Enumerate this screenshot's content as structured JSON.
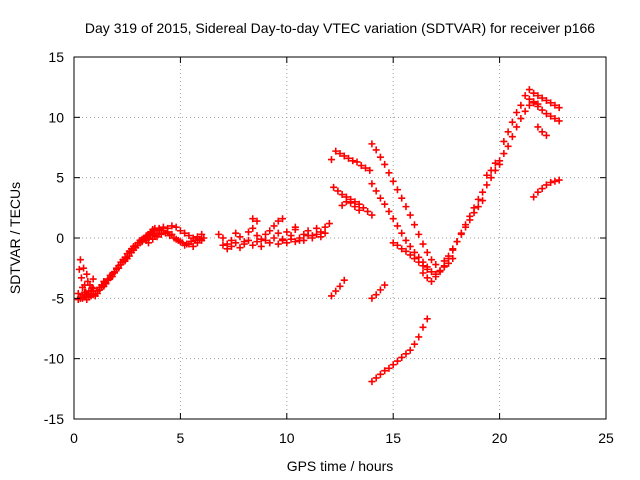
{
  "chart_data": {
    "type": "scatter",
    "title": "Day 319 of 2015, Sidereal Day-to-day VTEC variation (SDTVAR) for receiver p166",
    "xlabel": "GPS time / hours",
    "ylabel": "SDTVAR / TECUs",
    "xlim": [
      0,
      25
    ],
    "ylim": [
      -15,
      15
    ],
    "xticks": [
      0,
      5,
      10,
      15,
      20,
      25
    ],
    "yticks": [
      -15,
      -10,
      -5,
      0,
      5,
      10,
      15
    ],
    "grid": true,
    "marker": "plus",
    "color": "#ff0000",
    "series": [
      {
        "x": [
          0.2,
          0.25,
          0.3,
          0.35,
          0.4,
          0.45,
          0.5,
          0.55,
          0.6,
          0.65,
          0.7,
          0.75,
          0.8,
          0.85,
          0.9
        ],
        "y": [
          -4.6,
          -2.6,
          -1.8,
          -3.3,
          -4.1,
          -2.5,
          -3.9,
          -4.5,
          -3.0,
          -3.6,
          -4.4,
          -3.9,
          -4.7,
          -4.1,
          -3.4
        ]
      },
      {
        "x": [
          0.3,
          0.4,
          0.5,
          0.6,
          0.7,
          0.8,
          0.9,
          1.0,
          1.1,
          1.2,
          1.3,
          1.4,
          1.5,
          1.6,
          1.7,
          1.8,
          1.9,
          2.0,
          2.1,
          2.2,
          2.3,
          2.4,
          2.5,
          2.6,
          2.7,
          2.8,
          2.9,
          3.0,
          3.1,
          3.2,
          3.3,
          3.4,
          3.5,
          3.6,
          3.7,
          3.8,
          3.9,
          4.0
        ],
        "y": [
          -4.9,
          -4.7,
          -4.5,
          -4.8,
          -4.6,
          -4.4,
          -4.2,
          -4.6,
          -4.4,
          -4.1,
          -3.9,
          -3.6,
          -3.7,
          -3.4,
          -3.1,
          -3.2,
          -2.9,
          -2.6,
          -2.5,
          -2.2,
          -2.0,
          -1.9,
          -1.7,
          -1.5,
          -1.2,
          -1.0,
          -0.8,
          -0.6,
          -0.4,
          -0.3,
          -0.1,
          0.1,
          0.3,
          0.5,
          0.7,
          0.8,
          0.6,
          0.8
        ]
      },
      {
        "x": [
          0.2,
          0.3,
          0.4,
          0.5,
          0.6,
          0.7,
          0.8,
          0.9,
          1.0,
          1.1,
          1.2,
          1.3,
          1.4,
          1.5,
          1.6,
          1.7,
          1.8,
          1.9,
          2.0,
          2.1,
          2.2,
          2.3,
          2.4,
          2.5,
          2.6,
          2.7,
          2.8,
          2.9,
          3.0,
          3.1,
          3.2,
          3.3,
          3.4,
          3.5,
          3.6,
          3.7
        ],
        "y": [
          -5.1,
          -5.0,
          -5.0,
          -4.9,
          -5.1,
          -4.9,
          -4.8,
          -4.7,
          -4.8,
          -4.6,
          -4.3,
          -4.1,
          -4.0,
          -3.8,
          -3.5,
          -3.3,
          -3.0,
          -2.8,
          -2.5,
          -2.3,
          -2.0,
          -1.8,
          -1.6,
          -1.3,
          -1.1,
          -0.9,
          -0.7,
          -0.6,
          -0.4,
          -0.2,
          -0.1,
          0.0,
          -0.2,
          0.0,
          0.2,
          0.3
        ]
      },
      {
        "x": [
          3.2,
          3.4,
          3.6,
          3.8,
          4.0,
          4.2,
          4.4,
          4.6,
          4.8,
          5.0,
          5.2,
          5.4,
          5.6,
          5.8,
          6.0
        ],
        "y": [
          -0.2,
          0.2,
          0.4,
          0.6,
          0.7,
          0.9,
          0.8,
          1.0,
          0.9,
          0.6,
          0.4,
          0.2,
          0.0,
          0.1,
          0.3
        ]
      },
      {
        "x": [
          3.5,
          3.7,
          3.9,
          4.1,
          4.3,
          4.5,
          4.7,
          4.9,
          5.1,
          5.3,
          5.5,
          5.7,
          5.9,
          6.1
        ],
        "y": [
          -0.4,
          -0.1,
          0.1,
          0.3,
          0.4,
          0.2,
          0.0,
          -0.2,
          -0.4,
          -0.5,
          -0.3,
          -0.2,
          -0.1,
          0.0
        ]
      },
      {
        "x": [
          3.8,
          4.0,
          4.2,
          4.4,
          4.6,
          4.8,
          5.0,
          5.2,
          5.4,
          5.6,
          5.8,
          6.0
        ],
        "y": [
          0.2,
          0.4,
          0.6,
          0.5,
          0.3,
          -0.1,
          -0.3,
          -0.6,
          -0.5,
          -0.7,
          -0.4,
          -0.2
        ]
      },
      {
        "x": [
          6.8,
          7.0,
          7.2,
          7.4,
          7.6,
          7.8,
          8.0,
          8.2,
          8.4,
          8.6,
          8.8,
          9.0,
          9.2,
          9.4,
          9.6,
          9.8,
          10.0,
          10.2,
          10.4,
          10.6,
          10.8,
          11.0,
          11.2,
          11.4,
          11.6,
          11.8,
          12.0
        ],
        "y": [
          0.3,
          0.0,
          -0.5,
          -0.2,
          0.4,
          0.1,
          -0.3,
          0.5,
          0.8,
          0.2,
          -0.1,
          0.3,
          0.6,
          1.0,
          0.4,
          -0.1,
          0.5,
          0.2,
          0.7,
          -0.2,
          0.3,
          0.6,
          0.2,
          0.8,
          0.5,
          0.9,
          1.2
        ]
      },
      {
        "x": [
          7.0,
          7.2,
          7.4,
          7.6,
          7.8,
          8.0,
          8.2,
          8.4,
          8.6,
          8.8,
          9.0,
          9.2,
          9.4,
          9.6,
          9.8,
          10.0,
          10.2,
          10.4,
          10.6,
          10.8,
          11.0,
          11.2,
          11.4,
          11.6,
          11.8
        ],
        "y": [
          -0.6,
          -0.9,
          -0.7,
          -0.4,
          -0.8,
          -0.5,
          -0.2,
          -0.6,
          -0.3,
          -0.7,
          -0.2,
          -0.4,
          0.0,
          -0.5,
          -0.2,
          -0.4,
          -0.1,
          -0.3,
          0.0,
          -0.2,
          0.2,
          0.0,
          0.3,
          0.1,
          0.4
        ]
      },
      {
        "x": [
          8.4,
          8.6,
          9.6,
          9.8,
          10.4
        ],
        "y": [
          1.6,
          1.4,
          1.4,
          1.6,
          0.9
        ]
      },
      {
        "x": [
          12.1,
          12.3,
          12.5,
          12.7,
          12.9,
          13.1,
          13.3,
          13.5,
          13.7,
          13.9
        ],
        "y": [
          6.5,
          7.2,
          7.0,
          6.8,
          6.6,
          6.4,
          6.3,
          6.0,
          5.8,
          5.6
        ]
      },
      {
        "x": [
          12.2,
          12.4,
          12.6,
          12.8,
          13.0,
          13.2,
          13.4,
          13.6,
          13.8,
          14.0
        ],
        "y": [
          4.2,
          3.9,
          3.6,
          3.4,
          3.2,
          3.0,
          2.8,
          2.5,
          2.2,
          1.9
        ]
      },
      {
        "x": [
          12.6,
          12.8,
          13.0,
          13.2,
          13.4
        ],
        "y": [
          2.7,
          3.0,
          2.9,
          2.6,
          2.3
        ]
      },
      {
        "x": [
          14.0,
          14.2,
          14.4,
          14.6,
          14.8,
          15.0,
          15.2,
          15.4,
          15.6,
          15.8,
          16.0,
          16.2,
          16.4,
          16.6,
          16.8,
          17.0
        ],
        "y": [
          7.8,
          7.3,
          6.7,
          6.1,
          5.4,
          4.7,
          4.0,
          3.3,
          2.6,
          1.9,
          1.1,
          0.3,
          -0.5,
          -1.2,
          -1.8,
          -2.2
        ]
      },
      {
        "x": [
          14.0,
          14.2,
          14.4,
          14.6,
          14.8,
          15.0,
          15.2,
          15.4,
          15.6,
          15.8,
          16.0,
          16.2,
          16.4,
          16.6
        ],
        "y": [
          4.5,
          3.9,
          3.3,
          2.8,
          2.2,
          1.6,
          1.0,
          0.4,
          -0.2,
          -0.7,
          -1.2,
          -1.6,
          -2.0,
          -2.4
        ]
      },
      {
        "x": [
          15.0,
          15.2,
          15.4,
          15.6,
          15.8,
          16.0,
          16.2,
          16.4,
          16.6,
          16.8,
          17.0,
          17.2,
          17.4,
          17.6,
          17.8
        ],
        "y": [
          -0.4,
          -0.6,
          -0.9,
          -1.1,
          -1.4,
          -1.7,
          -2.0,
          -2.3,
          -2.6,
          -2.8,
          -3.0,
          -2.7,
          -2.4,
          -2.1,
          -1.7
        ]
      },
      {
        "x": [
          16.4,
          16.6,
          16.8,
          17.0,
          17.2,
          17.4,
          17.6,
          17.8,
          18.0,
          18.2,
          18.4,
          18.6,
          18.8,
          19.0,
          19.2,
          19.4,
          19.6,
          19.8,
          20.0
        ],
        "y": [
          -2.9,
          -3.3,
          -3.6,
          -3.2,
          -2.8,
          -2.3,
          -1.7,
          -1.0,
          -0.3,
          0.4,
          1.1,
          1.8,
          2.5,
          3.2,
          3.8,
          4.4,
          5.0,
          5.6,
          6.1
        ]
      },
      {
        "x": [
          17.4,
          17.6,
          17.8,
          18.0,
          18.2,
          18.4,
          18.6,
          18.8,
          19.0,
          19.2
        ],
        "y": [
          -1.9,
          -1.5,
          -0.9,
          -0.3,
          0.3,
          0.9,
          1.5,
          2.1,
          2.6,
          3.1
        ]
      },
      {
        "x": [
          19.4,
          19.6,
          19.8,
          20.0,
          20.2,
          20.4,
          20.6,
          20.8,
          21.0,
          21.2,
          21.4,
          21.6,
          21.8
        ],
        "y": [
          5.2,
          5.6,
          6.2,
          6.4,
          7.0,
          7.6,
          8.4,
          9.2,
          9.9,
          10.5,
          11.0,
          11.3,
          11.1
        ]
      },
      {
        "x": [
          20.2,
          20.4,
          20.6,
          20.8,
          21.0,
          21.2,
          21.4,
          21.6,
          21.8,
          22.0,
          22.2,
          22.4,
          22.6,
          22.8
        ],
        "y": [
          8.0,
          8.8,
          9.6,
          10.4,
          11.0,
          11.8,
          12.3,
          12.0,
          11.8,
          11.6,
          11.4,
          11.2,
          11.0,
          10.8
        ]
      },
      {
        "x": [
          21.4,
          21.6,
          21.8,
          22.0,
          22.2,
          22.4,
          22.6,
          22.8
        ],
        "y": [
          11.5,
          11.2,
          10.9,
          10.6,
          10.3,
          10.1,
          9.9,
          9.7
        ]
      },
      {
        "x": [
          21.8,
          22.0,
          22.2
        ],
        "y": [
          9.2,
          8.8,
          8.5
        ]
      },
      {
        "x": [
          21.6,
          21.8,
          22.0,
          22.2,
          22.4,
          22.6,
          22.8
        ],
        "y": [
          3.4,
          3.8,
          4.1,
          4.4,
          4.6,
          4.7,
          4.8
        ]
      },
      {
        "x": [
          12.1,
          12.3,
          12.5,
          12.7
        ],
        "y": [
          -4.8,
          -4.4,
          -4.0,
          -3.5
        ]
      },
      {
        "x": [
          14.0,
          14.2,
          14.4,
          14.6
        ],
        "y": [
          -5.0,
          -4.7,
          -4.3,
          -3.9
        ]
      },
      {
        "x": [
          14.0,
          14.2,
          14.4,
          14.6,
          14.8,
          15.0,
          15.2,
          15.4,
          15.6,
          15.8,
          16.0,
          16.2,
          16.4,
          16.6
        ],
        "y": [
          -11.9,
          -11.6,
          -11.3,
          -11.0,
          -10.8,
          -10.5,
          -10.2,
          -9.9,
          -9.6,
          -9.3,
          -8.8,
          -8.2,
          -7.4,
          -6.7
        ]
      }
    ]
  }
}
